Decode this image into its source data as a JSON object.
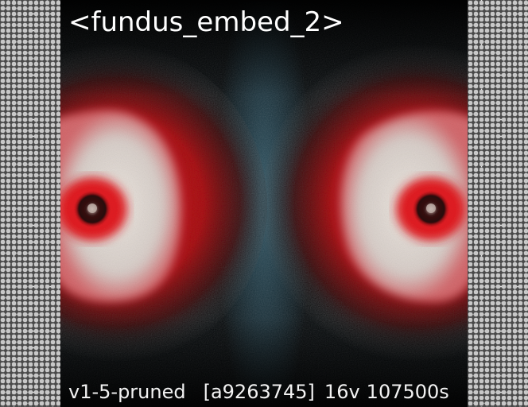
{
  "image": {
    "title": "<fundus_embed_2>",
    "version": "v1-5-pruned",
    "hash": "[a9263745]",
    "verts": "16v",
    "steps": "107500s"
  },
  "colors": {
    "retina_red": "#d0101a",
    "retina_pale": "#ddd8d2",
    "center_teal": "#2f5564",
    "text": "#ffffff"
  },
  "icons": {
    "left_border": "hexagon-dot-pattern",
    "right_border": "hexagon-dot-pattern"
  }
}
